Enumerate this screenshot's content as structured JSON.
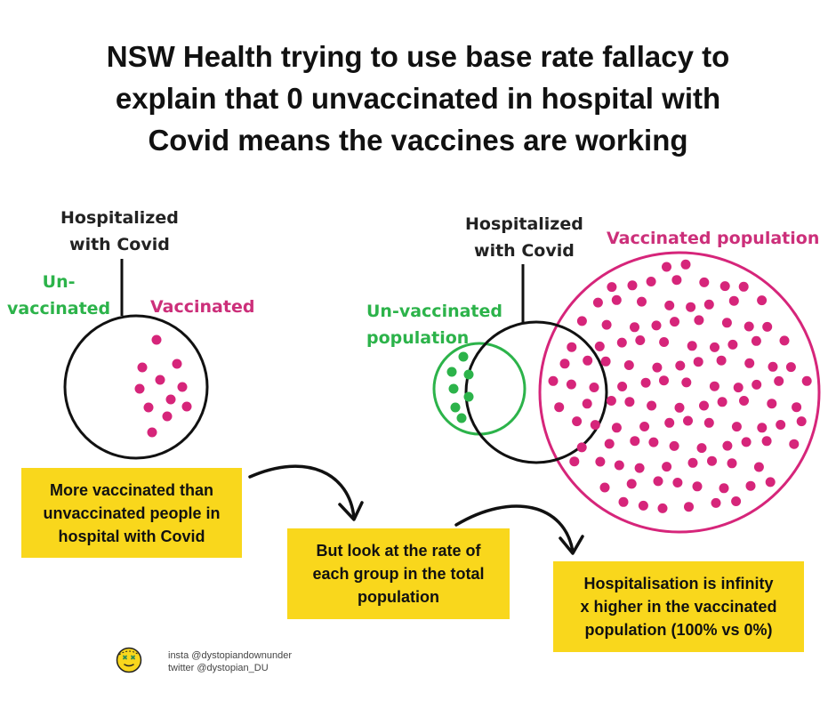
{
  "title": {
    "lines": [
      "NSW Health trying to use base rate fallacy to",
      "explain that 0 unvaccinated in hospital with",
      "Covid means the vaccines are working"
    ]
  },
  "left_diagram": {
    "hospitalized_label": [
      "Hospitalized",
      "with Covid"
    ],
    "unvaccinated_label": [
      "Un-",
      "vaccinated"
    ],
    "vaccinated_label": "Vaccinated"
  },
  "right_diagram": {
    "hospitalized_label": [
      "Hospitalized",
      "with Covid"
    ],
    "unvaccinated_label": [
      "Un-vaccinated",
      "population"
    ],
    "vaccinated_label": "Vaccinated population"
  },
  "callouts": {
    "box1": [
      "More vaccinated than",
      "unvaccinated people in",
      "hospital with Covid"
    ],
    "box2": [
      "But look at the rate of",
      "each group in the total",
      "population"
    ],
    "box3": [
      "Hospitalisation is infinity",
      "x higher in the vaccinated",
      "population (100% vs 0%)"
    ]
  },
  "credits": {
    "insta": "insta @dystopiandownunder",
    "twitter": "twitter @dystopian_DU"
  },
  "colors": {
    "vaccinated": "#d6257a",
    "unvaccinated": "#2cb34a",
    "outline": "#111111",
    "callout_bg": "#f9d71c"
  },
  "icons": {
    "logo": "dizzy-face-icon"
  }
}
